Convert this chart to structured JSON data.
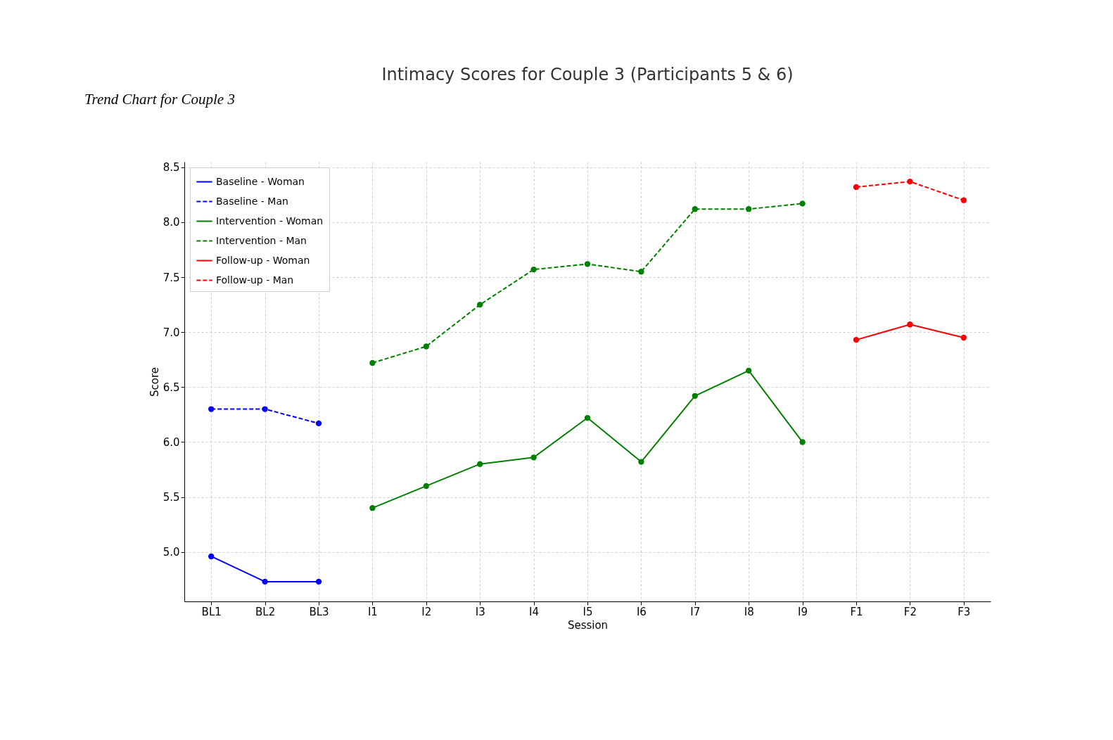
{
  "chart_data": {
    "type": "line",
    "title": "Intimacy Scores for Couple 3 (Participants 5 & 6)",
    "xlabel": "Session",
    "ylabel": "Score",
    "annotations": [
      "Trend Chart for Couple 3"
    ],
    "categories": [
      "BL1",
      "BL2",
      "BL3",
      "I1",
      "I2",
      "I3",
      "I4",
      "I5",
      "I6",
      "I7",
      "I8",
      "I9",
      "F1",
      "F2",
      "F3"
    ],
    "ylim": [
      4.55,
      8.55
    ],
    "yticks": [
      {
        "value": 5,
        "label": "5.0"
      },
      5.5,
      {
        "value": 6,
        "label": "6.0"
      },
      6.5,
      {
        "value": 7,
        "label": "7.0"
      },
      7.5,
      {
        "value": 8,
        "label": "8.0"
      },
      8.5
    ],
    "grid": true,
    "legend": "top left",
    "marker": "circle",
    "series": [
      {
        "name": "Baseline - Woman",
        "color": "#0000ff",
        "line_style": "solid",
        "x": [
          "BL1",
          "BL2",
          "BL3"
        ],
        "values": [
          4.96,
          4.73,
          4.73
        ]
      },
      {
        "name": "Baseline - Man",
        "color": "#0000ff",
        "line_style": "dashed",
        "x": [
          "BL1",
          "BL2",
          "BL3"
        ],
        "values": [
          6.3,
          6.3,
          6.17
        ]
      },
      {
        "name": "Intervention - Woman",
        "color": "#008000",
        "line_style": "solid",
        "x": [
          "I1",
          "I2",
          "I3",
          "I4",
          "I5",
          "I6",
          "I7",
          "I8",
          "I9"
        ],
        "values": [
          5.4,
          5.6,
          5.8,
          5.86,
          6.22,
          5.82,
          6.42,
          6.65,
          6.0
        ]
      },
      {
        "name": "Intervention - Man",
        "color": "#008000",
        "line_style": "dashed",
        "x": [
          "I1",
          "I2",
          "I3",
          "I4",
          "I5",
          "I6",
          "I7",
          "I8",
          "I9"
        ],
        "values": [
          6.72,
          6.87,
          7.25,
          7.57,
          7.62,
          7.55,
          8.12,
          8.12,
          8.17
        ]
      },
      {
        "name": "Follow-up - Woman",
        "color": "#ff0000",
        "line_style": "solid",
        "x": [
          "F1",
          "F2",
          "F3"
        ],
        "values": [
          6.93,
          7.07,
          6.95
        ]
      },
      {
        "name": "Follow-up - Man",
        "color": "#ff0000",
        "line_style": "dashed",
        "x": [
          "F1",
          "F2",
          "F3"
        ],
        "values": [
          8.32,
          8.37,
          8.2
        ]
      }
    ]
  }
}
